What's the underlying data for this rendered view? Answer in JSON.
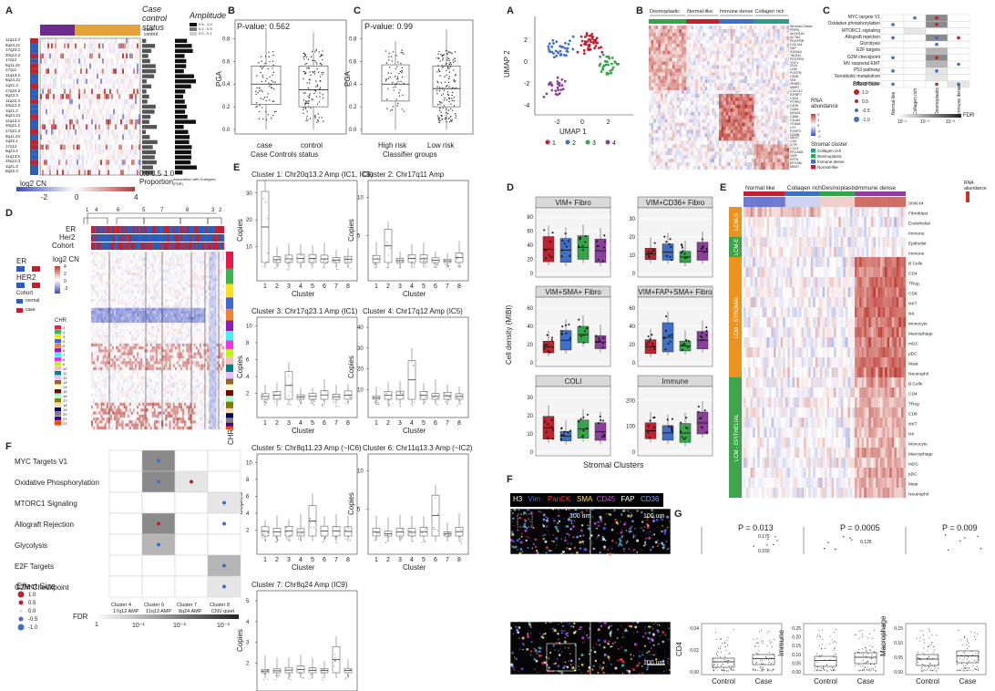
{
  "panels": {
    "A": "A",
    "B": "B",
    "C": "C",
    "D": "D",
    "E": "E",
    "F": "F",
    "A2": "A",
    "B2": "B",
    "C2": "C",
    "D2": "D",
    "E2": "E",
    "F2": "F",
    "G2": "G"
  },
  "left": {
    "a": {
      "case_control_title": "Case control status",
      "amplitude_title": "Amplitude",
      "legend_case": "case",
      "legend_control": "control",
      "amp_scale": [
        "0.5 - 1.0",
        "0.1 - 0.5",
        "0.0 - 0.1"
      ],
      "chromosomes": [
        "11q13.3",
        "8q24.21",
        "17q23.1",
        "20q13.2",
        "17q12",
        "8q11.23",
        "17q11",
        "11q13.3",
        "8q24.21",
        "1q21.3",
        "17q24.2",
        "8q23.3",
        "11q22.3",
        "20q13.2",
        "1q21.2",
        "8q24.21",
        "11q13.2",
        "20q11.2",
        "17q21.3",
        "8q11.23",
        "1q32.1",
        "17q12",
        "8q24.2",
        "11q13.5",
        "20q13.3",
        "1q21.3",
        "8q22.3"
      ],
      "proportion_label": "Proportion",
      "proportion_ticks": [
        "0.0",
        "0.5",
        "1.0"
      ],
      "association_label": "Association with Subtypes (FDR)",
      "log2cn_label": "log2 CN",
      "log2cn_ticks": [
        "-2",
        "0",
        "4"
      ]
    },
    "b": {
      "pvalue": "P-value: 0.562",
      "ylabel": "PGA",
      "xlabel": "Case Controls status",
      "categories": [
        "case",
        "control"
      ],
      "yticks": [
        "0.0",
        "0.2",
        "0.4",
        "0.6",
        "0.8"
      ]
    },
    "c": {
      "pvalue": "P-value: 0.99",
      "ylabel": "PGA",
      "xlabel": "Classifier groups",
      "categories": [
        "High risk",
        "Low risk"
      ],
      "yticks": [
        "0.0",
        "0.2",
        "0.4",
        "0.6",
        "0.8"
      ]
    },
    "d": {
      "cluster_numbers": [
        "1",
        "4",
        "6",
        "5",
        "7",
        "8",
        "3",
        "2"
      ],
      "row_labels": [
        "ER",
        "Her2",
        "Cohort"
      ],
      "legend_er": "ER",
      "legend_her2": "HER2",
      "legend_cohort": "Cohort",
      "legend_normal": "normal",
      "legend_case": "case",
      "log2cn_label": "log2 CN",
      "log2cn_ticks": [
        "4",
        "2",
        "0",
        "-2"
      ],
      "chr_label": "CHR",
      "chr_numbers": [
        "1",
        "2",
        "3",
        "4",
        "5",
        "6",
        "7",
        "8",
        "9",
        "10",
        "11",
        "12",
        "13",
        "14",
        "15",
        "16",
        "17",
        "18",
        "19",
        "20",
        "21",
        "22"
      ],
      "chr_axis_label": "CHR"
    },
    "e": {
      "xlabel": "Cluster",
      "ylabel": "Copies",
      "plots": [
        {
          "title": "Cluster 1: Chr20q13.2 Amp (IC1, IC9)",
          "yticks": [
            "10",
            "20",
            "30"
          ]
        },
        {
          "title": "Cluster 2: Chr17q11 Amp",
          "yticks": [
            "5",
            "10"
          ]
        },
        {
          "title": "Cluster 3: Chr17q23.1 Amp (IC1)",
          "yticks": [
            "2",
            "4",
            "6",
            "8",
            "10"
          ]
        },
        {
          "title": "Cluster 4: Chr17q12 Amp (IC5)",
          "yticks": [
            "10",
            "20",
            "30",
            "40"
          ]
        },
        {
          "title": "Cluster 5: Chr8q11.23 Amp (~IC6)",
          "yticks": [
            "2",
            "4",
            "6",
            "8",
            "10"
          ]
        },
        {
          "title": "Cluster 6: Chr11q13.3 Amp (~IC2)",
          "yticks": [
            "5",
            "10"
          ]
        },
        {
          "title": "Cluster 7: Chr8q24 Amp (IC9)",
          "yticks": [
            "2",
            "3",
            "4",
            "5"
          ]
        }
      ],
      "clusters": [
        "1",
        "2",
        "3",
        "4",
        "5",
        "6",
        "7",
        "8"
      ]
    },
    "f": {
      "rows": [
        "MYC Targets V1",
        "Oxidative Phosphorylation",
        "MTORC1 Signaling",
        "Allograft Rejection",
        "Glycolysis",
        "E2F Targets",
        "G2M Checkpoint"
      ],
      "cols": [
        "Cluster 4 17q12 AMP",
        "Cluster 6 11q13 AMP",
        "Cluster 7 8q24 AMP",
        "Cluster 8 CNV quiet"
      ],
      "effect_size_title": "Effect Size",
      "effect_values": [
        "1.0",
        "0.5",
        "0.0",
        "-0.5",
        "-1.0"
      ],
      "fdr_label": "FDR",
      "fdr_ticks": [
        "1",
        "10⁻¹",
        "10⁻²",
        "10⁻³"
      ]
    }
  },
  "right": {
    "a": {
      "xlabel": "UMAP 1",
      "ylabel": "UMAP 2",
      "xticks": [
        "-2",
        "0",
        "2"
      ],
      "yticks": [
        "2",
        "0",
        "-2",
        "-4"
      ],
      "legend": [
        "1",
        "2",
        "3",
        "4"
      ]
    },
    "b": {
      "groups": [
        "Desmoplastic",
        "Normal-like",
        "Immune dense",
        "Collagen rich"
      ],
      "genes": [
        "Stromal Cluster",
        "PDPN",
        "ALDH1A1",
        "ACTA2",
        "PDGFRB",
        "COL1A1",
        "FAP",
        "S100A4",
        "TAGLN",
        "PDGFRA",
        "THY1",
        "DCN",
        "LUM",
        "POSTN",
        "CD36",
        "VIM",
        "SPARC",
        "MMP2",
        "CXCL12",
        "IGFBP7",
        "CD34",
        "PTPRC",
        "CD3E",
        "CD8A",
        "MS4A1",
        "CD68",
        "CD163",
        "ITGAM",
        "LYZ",
        "FOXP3",
        "GZMB",
        "NKG7",
        "CD4",
        "IL7R",
        "CCL5",
        "PECAM1",
        "VWF",
        "KRT8",
        "EPCAM",
        "MKI67"
      ],
      "rna_label": "RNA abundance",
      "rna_ticks": [
        "2",
        "1",
        "0",
        "-1",
        "-2"
      ],
      "stromal_title": "Stromal cluster",
      "stromal_items": [
        "Collagen rich",
        "Desmoplastic",
        "Immune dense",
        "Normal-like"
      ]
    },
    "c": {
      "rows": [
        "MYC targets V1",
        "Oxidative phosphorylation",
        "MTORC1 signaling",
        "Allograft rejection",
        "Glycolysis",
        "E2F targets",
        "G2M checkpoint",
        "MV raspertal EMT",
        "P53 pathway",
        "Xenobiotic metabolism",
        "Adipogenesis"
      ],
      "cols": [
        "Normal-like",
        "Collagen rich",
        "Desmoplastic",
        "Immune dense"
      ],
      "effect_title": "Effect Size",
      "effect_values": [
        "1.0",
        "0.5",
        "-0.5",
        "-1.0"
      ],
      "fdr_label": "FDR",
      "fdr_ticks": [
        "10⁻¹",
        "10⁻²",
        "10⁻³"
      ]
    },
    "d": {
      "ylabel": "Cell density (MIBI)",
      "xlabel": "Stromal Clusters",
      "facets": [
        {
          "title": "VIM+ Fibro",
          "yticks": [
            "0",
            "20",
            "40",
            "60",
            "80"
          ]
        },
        {
          "title": "VIM+CD36+ Fibro",
          "yticks": [
            "0",
            "10",
            "20",
            "30"
          ]
        },
        {
          "title": "VIM+SMA+ Fibro",
          "yticks": [
            "0",
            "20",
            "40",
            "60"
          ]
        },
        {
          "title": "VIM+FAP+SMA+ Fibro",
          "yticks": [
            "0",
            "20",
            "40",
            "60"
          ]
        },
        {
          "title": "COLI",
          "yticks": [
            "0",
            "10",
            "20",
            "30"
          ]
        },
        {
          "title": "Immune",
          "yticks": [
            "0",
            "100",
            "200"
          ]
        }
      ]
    },
    "e": {
      "groups": [
        "Normal like",
        "Collagen rich",
        "Desmoplastic",
        "Immune dense"
      ],
      "sections": [
        "LCM-S",
        "LCM-E",
        "LCM - STROMAL",
        "LCM - EPITHELIAL"
      ],
      "rows": [
        "SNN k4",
        "Fibroblast",
        "Endothelial",
        "Immune",
        "Epithelial",
        "Immune",
        "B Cells",
        "CD4",
        "TReg",
        "CD8",
        "NKT",
        "NK",
        "Monocyte",
        "Macrophage",
        "mDC",
        "pDC",
        "Mast",
        "Neutrophil",
        "B Cells",
        "CD4",
        "TReg",
        "CD8",
        "NKT",
        "NK",
        "Monocyte",
        "Macrophage",
        "mDC",
        "pDC",
        "Mast",
        "Neutrophil"
      ],
      "rna_label": "RNA abundance"
    },
    "f": {
      "markers": [
        "H3",
        "Vim",
        "PanCK",
        "SMA",
        "CD45",
        "FAP",
        "CD36"
      ],
      "marker_colors": [
        "#ffffff",
        "#4a6cff",
        "#ff3b3b",
        "#ffe14a",
        "#e040fb",
        "#ffffff",
        "#7fa8ff"
      ],
      "scale_bar": "100 um"
    },
    "g": {
      "pvalues": [
        "P = 0.013",
        "P = 0.0005",
        "P = 0.009"
      ],
      "ylabels": [
        "CD4",
        "Immune",
        "Macrophage"
      ],
      "categories": [
        "Control",
        "Case"
      ],
      "top_yticks": [
        "0.175",
        "0.150",
        "0.125"
      ],
      "yticks1": [
        "0.00",
        "0.02",
        "0.04"
      ],
      "yticks2": [
        "0.00",
        "0.05",
        "0.10",
        "0.15",
        "0.20",
        "0.25"
      ],
      "yticks3": [
        "0.00",
        "0.05",
        "0.10",
        "0.15"
      ]
    }
  },
  "colors": {
    "case": "#8e2f7e",
    "control": "#e5a13a",
    "er_pos": "#2b5dbb",
    "er_neg": "#c0212f",
    "heat_red": "#c0392b",
    "heat_blue": "#3b4cc0",
    "lcm_s": "#e8941f",
    "lcm_e": "#3ea34b",
    "cl1": "#c0212f",
    "cl2": "#3f6fc6",
    "cl3": "#33a649",
    "cl4": "#8b3f9b"
  }
}
